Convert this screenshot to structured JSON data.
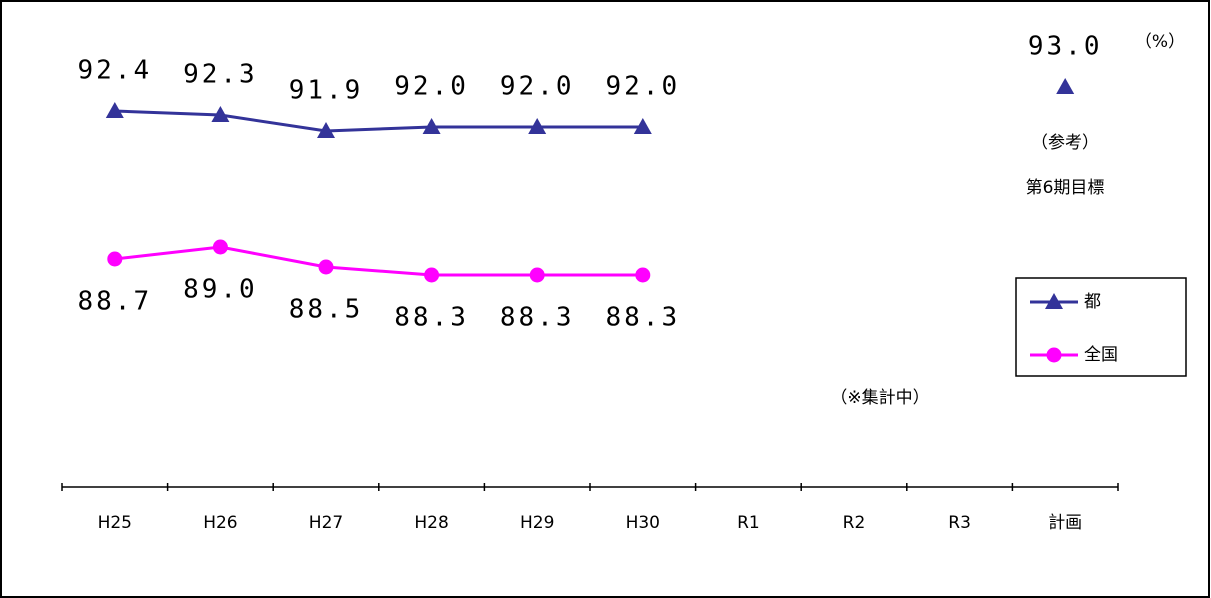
{
  "chart_data": {
    "type": "line",
    "categories": [
      "H25",
      "H26",
      "H27",
      "H28",
      "H29",
      "H30",
      "R1",
      "R2",
      "R3",
      "計画"
    ],
    "series": [
      {
        "name": "都",
        "color": "#333399",
        "marker": "triangle",
        "label_side": "above",
        "values": [
          92.4,
          92.3,
          91.9,
          92.0,
          92.0,
          92.0,
          null,
          null,
          null,
          93.0
        ],
        "value_labels": [
          "92.4",
          "92.3",
          "91.9",
          "92.0",
          "92.0",
          "92.0",
          null,
          null,
          null,
          "93.0"
        ]
      },
      {
        "name": "全国",
        "color": "#ff00ff",
        "marker": "circle",
        "label_side": "below",
        "values": [
          88.7,
          89.0,
          88.5,
          88.3,
          88.3,
          88.3,
          null,
          null,
          null,
          null
        ],
        "value_labels": [
          "88.7",
          "89.0",
          "88.5",
          "88.3",
          "88.3",
          "88.3",
          null,
          null,
          null,
          null
        ]
      }
    ],
    "ylim": [
      83,
      95
    ],
    "unit_note": "（%）",
    "annotations": [
      "（参考）",
      "第6期目標",
      "（※集計中）"
    ],
    "legend": "right"
  }
}
